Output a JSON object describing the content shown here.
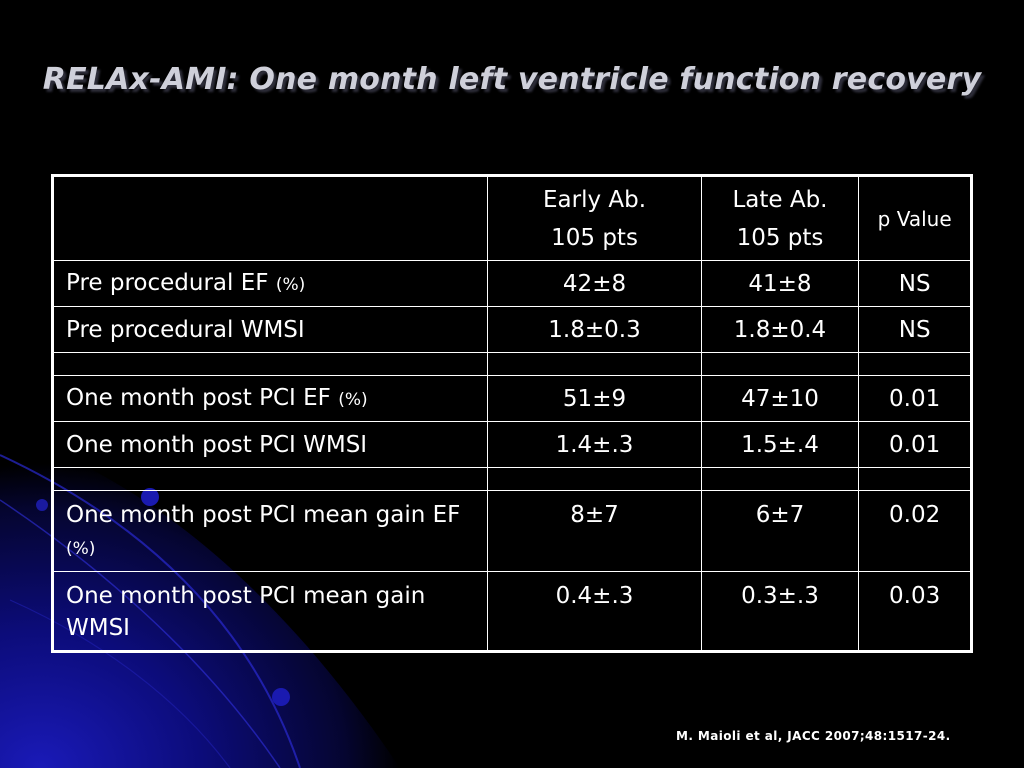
{
  "slide": {
    "title": "RELAx-AMI: One month left ventricle function recovery",
    "citation": "M. Maioli et al, JACC 2007;48:1517-24."
  },
  "table": {
    "header": {
      "col1": "",
      "col2_line1": "Early Ab.",
      "col2_line2": "105 pts",
      "col3_line1": "Late Ab.",
      "col3_line2": "105 pts",
      "col4": "p Value"
    },
    "rows": [
      {
        "label": "Pre procedural EF",
        "unit": "(%)",
        "early": "42±8",
        "late": "41±8",
        "p": "NS"
      },
      {
        "label": "Pre procedural WMSI",
        "unit": "",
        "early": "1.8±0.3",
        "late": "1.8±0.4",
        "p": "NS"
      },
      {
        "label": "One month post PCI EF",
        "unit": "(%)",
        "early": "51±9",
        "late": "47±10",
        "p": "0.01"
      },
      {
        "label": "One month post PCI WMSI",
        "unit": "",
        "early": "1.4±.3",
        "late": "1.5±.4",
        "p": "0.01"
      },
      {
        "label": "One month post PCI mean gain EF",
        "unit": "(%)",
        "early": "8±7",
        "late": "6±7",
        "p": "0.02"
      },
      {
        "label": "One month post PCI mean gain WMSI",
        "unit": "",
        "early": "0.4±.3",
        "late": "0.3±.3",
        "p": "0.03"
      }
    ]
  },
  "theme": {
    "background": "#000000",
    "title_color": "#cfd0da",
    "text_color": "#ffffff",
    "accent_blue": "#1a1aa0"
  }
}
